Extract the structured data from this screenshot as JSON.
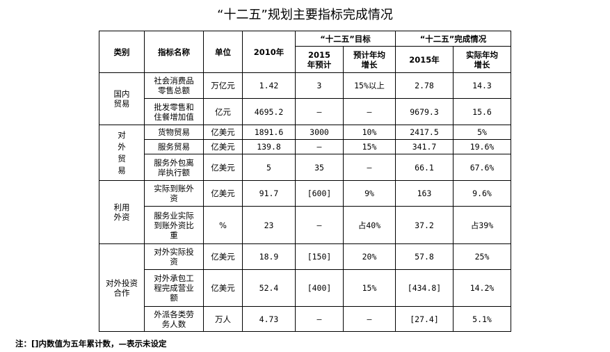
{
  "title": "“十二五”规划主要指标完成情况",
  "headers": {
    "category": "类别",
    "name": "指标名称",
    "unit": "单位",
    "y2010": "2010年",
    "target_group": "“十二五”目标",
    "target_2015": "2015年预计",
    "target_growth": "预计年均增长",
    "actual_group": "“十二五”完成情况",
    "actual_2015": "2015年",
    "actual_growth": "实际年均增长"
  },
  "categories": [
    "国内贸易",
    "对外贸易",
    "利用外资",
    "对外投资合作"
  ],
  "rows": [
    {
      "name": "社会消费品零售总额",
      "unit": "万亿元",
      "y2010": "1.42",
      "target_2015": "3",
      "target_growth": "15%以上",
      "actual_2015": "2.78",
      "actual_growth": "14.3"
    },
    {
      "name": "批发零售和住餐增加值",
      "unit": "亿元",
      "y2010": "4695.2",
      "target_2015": "—",
      "target_growth": "—",
      "actual_2015": "9679.3",
      "actual_growth": "15.6"
    },
    {
      "name": "货物贸易",
      "unit": "亿美元",
      "y2010": "1891.6",
      "target_2015": "3000",
      "target_growth": "10%",
      "actual_2015": "2417.5",
      "actual_growth": "5%"
    },
    {
      "name": "服务贸易",
      "unit": "亿美元",
      "y2010": "139.8",
      "target_2015": "—",
      "target_growth": "15%",
      "actual_2015": "341.7",
      "actual_growth": "19.6%"
    },
    {
      "name": "服务外包离岸执行额",
      "unit": "亿美元",
      "y2010": "5",
      "target_2015": "35",
      "target_growth": "—",
      "actual_2015": "66.1",
      "actual_growth": "67.6%"
    },
    {
      "name": "实际到账外资",
      "unit": "亿美元",
      "y2010": "91.7",
      "target_2015": "[600]",
      "target_growth": "9%",
      "actual_2015": "163",
      "actual_growth": "9.6%"
    },
    {
      "name": "服务业实际到账外资比重",
      "unit": "%",
      "y2010": "23",
      "target_2015": "—",
      "target_growth": "占40%",
      "actual_2015": "37.2",
      "actual_growth": "占39%"
    },
    {
      "name": "对外实际投资",
      "unit": "亿美元",
      "y2010": "18.9",
      "target_2015": "[150]",
      "target_growth": "20%",
      "actual_2015": "57.8",
      "actual_growth": "25%"
    },
    {
      "name": "对外承包工程完成营业额",
      "unit": "亿美元",
      "y2010": "52.4",
      "target_2015": "[400]",
      "target_growth": "15%",
      "actual_2015": "[434.8]",
      "actual_growth": "14.2%"
    },
    {
      "name": "外派各类劳务人数",
      "unit": "万人",
      "y2010": "4.73",
      "target_2015": "—",
      "target_growth": "—",
      "actual_2015": "[27.4]",
      "actual_growth": "5.1%"
    }
  ],
  "note": "注：[]内数值为五年累计数，—表示未设定"
}
